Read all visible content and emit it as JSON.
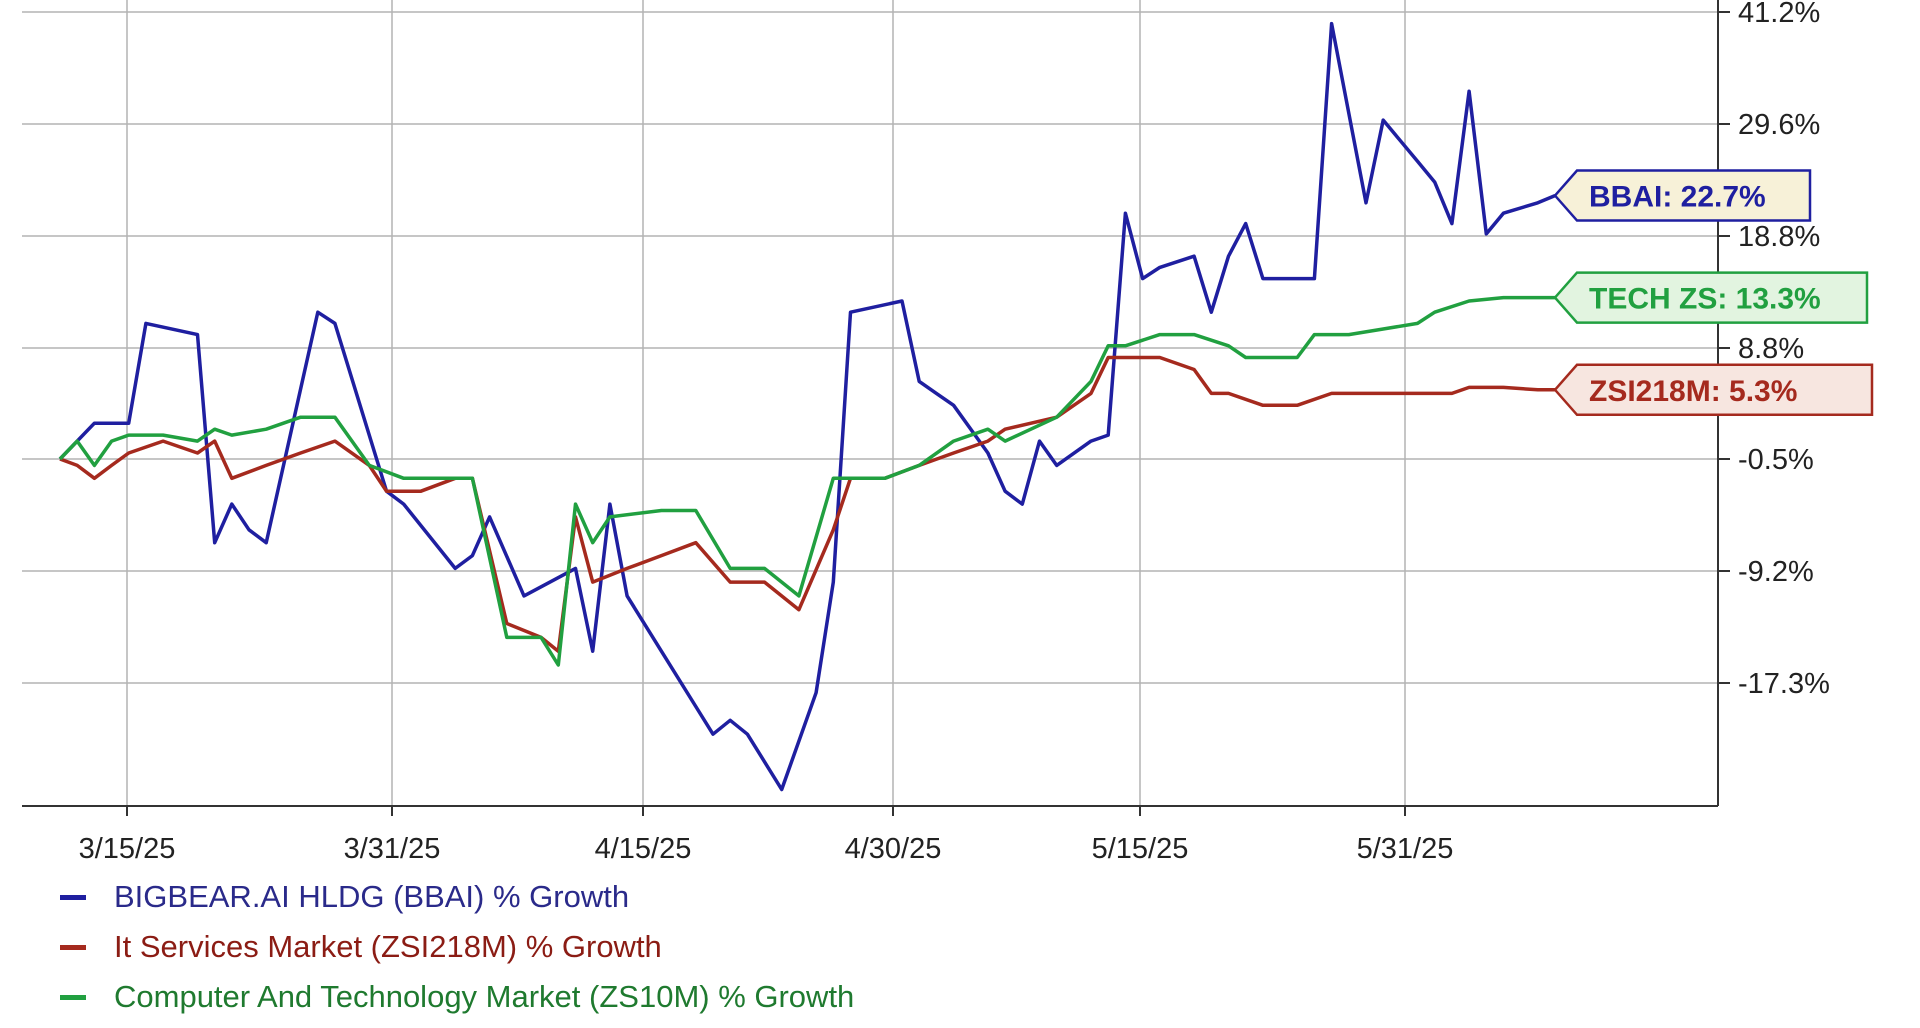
{
  "chart_data": {
    "type": "line",
    "x_ticks": [
      "3/15/25",
      "3/31/25",
      "4/15/25",
      "4/30/25",
      "5/15/25",
      "5/31/25"
    ],
    "y_ticks": [
      "41.2%",
      "29.6%",
      "18.8%",
      "8.8%",
      "-0.5%",
      "-9.2%",
      "-17.3%"
    ],
    "grid": true,
    "series": [
      {
        "name": "BIGBEAR.AI HLDG (BBAI) % Growth",
        "tag": "BBAI: 22.7%",
        "color": "#1f1fa0",
        "tagBg": "#f7f1d8",
        "values": [
          [
            0,
            -0.5
          ],
          [
            2,
            2.5
          ],
          [
            4,
            2.5
          ],
          [
            5,
            11
          ],
          [
            8,
            10
          ],
          [
            9,
            -7
          ],
          [
            10,
            -4
          ],
          [
            11,
            -6
          ],
          [
            12,
            -7
          ],
          [
            15,
            12
          ],
          [
            16,
            11
          ],
          [
            19,
            -3
          ],
          [
            20,
            -4
          ],
          [
            23,
            -9
          ],
          [
            24,
            -8
          ],
          [
            25,
            -5
          ],
          [
            27,
            -11
          ],
          [
            30,
            -9
          ],
          [
            31,
            -15
          ],
          [
            32,
            -4
          ],
          [
            33,
            -11
          ],
          [
            35,
            -15
          ],
          [
            37,
            -19
          ],
          [
            38,
            -21
          ],
          [
            39,
            -20
          ],
          [
            40,
            -21
          ],
          [
            42,
            -25
          ],
          [
            44,
            -18
          ],
          [
            45,
            -10
          ],
          [
            46,
            12
          ],
          [
            49,
            13
          ],
          [
            50,
            6
          ],
          [
            51,
            5
          ],
          [
            52,
            4
          ],
          [
            54,
            0
          ],
          [
            55,
            -3
          ],
          [
            56,
            -4
          ],
          [
            57,
            1
          ],
          [
            58,
            -1
          ],
          [
            60,
            1
          ],
          [
            61,
            1.5
          ],
          [
            62,
            21
          ],
          [
            63,
            15
          ],
          [
            64,
            16
          ],
          [
            66,
            17
          ],
          [
            67,
            12
          ],
          [
            68,
            17
          ],
          [
            69,
            20
          ],
          [
            70,
            15
          ],
          [
            73,
            15
          ],
          [
            74,
            40
          ],
          [
            76,
            22
          ],
          [
            77,
            30
          ],
          [
            79,
            26
          ],
          [
            80,
            24
          ],
          [
            81,
            20
          ],
          [
            82,
            33
          ],
          [
            83,
            19
          ],
          [
            84,
            21
          ],
          [
            86,
            22
          ],
          [
            87,
            22.7
          ]
        ]
      },
      {
        "name": "It Services Market (ZSI218M) % Growth",
        "tag": "ZSI218M: 5.3%",
        "color": "#a52a1e",
        "tagBg": "#f7e6e0",
        "values": [
          [
            0,
            -0.5
          ],
          [
            1,
            -1
          ],
          [
            2,
            -2
          ],
          [
            3,
            -1
          ],
          [
            4,
            0
          ],
          [
            6,
            1
          ],
          [
            8,
            0
          ],
          [
            9,
            1
          ],
          [
            10,
            -2
          ],
          [
            12,
            -1
          ],
          [
            14,
            0
          ],
          [
            16,
            1
          ],
          [
            18,
            -1
          ],
          [
            19,
            -3
          ],
          [
            21,
            -3
          ],
          [
            23,
            -2
          ],
          [
            24,
            -2
          ],
          [
            26,
            -13
          ],
          [
            28,
            -14
          ],
          [
            29,
            -15
          ],
          [
            30,
            -5
          ],
          [
            31,
            -10
          ],
          [
            33,
            -9
          ],
          [
            35,
            -8
          ],
          [
            37,
            -7
          ],
          [
            39,
            -10
          ],
          [
            41,
            -10
          ],
          [
            43,
            -12
          ],
          [
            45,
            -6
          ],
          [
            46,
            -2
          ],
          [
            48,
            -2
          ],
          [
            50,
            -1
          ],
          [
            52,
            0
          ],
          [
            54,
            1
          ],
          [
            55,
            2
          ],
          [
            58,
            3
          ],
          [
            60,
            5
          ],
          [
            61,
            8
          ],
          [
            62,
            8
          ],
          [
            64,
            8
          ],
          [
            66,
            7
          ],
          [
            67,
            5
          ],
          [
            68,
            5
          ],
          [
            70,
            4
          ],
          [
            72,
            4
          ],
          [
            74,
            5
          ],
          [
            76,
            5
          ],
          [
            78,
            5
          ],
          [
            80,
            5
          ],
          [
            81,
            5
          ],
          [
            82,
            5.5
          ],
          [
            84,
            5.5
          ],
          [
            86,
            5.3
          ],
          [
            87,
            5.3
          ]
        ]
      },
      {
        "name": "Computer And Technology Market (ZS10M) % Growth",
        "tag": "TECH ZS: 13.3%",
        "color": "#21a040",
        "tagBg": "#e2f4e0",
        "values": [
          [
            0,
            -0.5
          ],
          [
            1,
            1
          ],
          [
            2,
            -1
          ],
          [
            3,
            1
          ],
          [
            4,
            1.5
          ],
          [
            6,
            1.5
          ],
          [
            8,
            1
          ],
          [
            9,
            2
          ],
          [
            10,
            1.5
          ],
          [
            12,
            2
          ],
          [
            14,
            3
          ],
          [
            16,
            3
          ],
          [
            18,
            -1
          ],
          [
            20,
            -2
          ],
          [
            22,
            -2
          ],
          [
            24,
            -2
          ],
          [
            26,
            -14
          ],
          [
            28,
            -14
          ],
          [
            29,
            -16
          ],
          [
            30,
            -4
          ],
          [
            31,
            -7
          ],
          [
            32,
            -5
          ],
          [
            35,
            -4.5
          ],
          [
            37,
            -4.5
          ],
          [
            39,
            -9
          ],
          [
            41,
            -9
          ],
          [
            43,
            -11
          ],
          [
            45,
            -2
          ],
          [
            46,
            -2
          ],
          [
            48,
            -2
          ],
          [
            50,
            -1
          ],
          [
            52,
            1
          ],
          [
            54,
            2
          ],
          [
            55,
            1
          ],
          [
            58,
            3
          ],
          [
            60,
            6
          ],
          [
            61,
            9
          ],
          [
            62,
            9
          ],
          [
            64,
            10
          ],
          [
            66,
            10
          ],
          [
            68,
            9
          ],
          [
            69,
            8
          ],
          [
            70,
            8
          ],
          [
            72,
            8
          ],
          [
            73,
            10
          ],
          [
            75,
            10
          ],
          [
            77,
            10.5
          ],
          [
            79,
            11
          ],
          [
            80,
            12
          ],
          [
            82,
            13
          ],
          [
            84,
            13.3
          ],
          [
            87,
            13.3
          ]
        ]
      }
    ]
  }
}
